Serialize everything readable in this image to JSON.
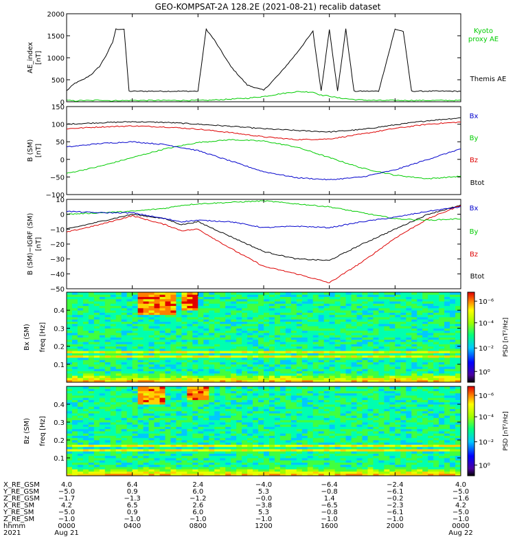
{
  "title": "GEO-KOMPSAT-2A 128.2E (2021-08-21) recalib dataset",
  "colors": {
    "black": "#000000",
    "red": "#dd0000",
    "green": "#00cc00",
    "blue": "#0000cc"
  },
  "chart_data": [
    {
      "type": "line",
      "ylabel": "AE_index",
      "yunit": "[nT]",
      "ylim": [
        0,
        2000
      ],
      "yticks": [
        "0",
        "500",
        "1000",
        "1500",
        "2000"
      ],
      "legend": [
        "Kyoto proxy AE",
        "Themis AE"
      ],
      "x_hours": [
        0,
        0.5,
        1,
        1.5,
        2,
        2.4,
        2.8,
        3,
        3.2,
        3.5,
        3.8,
        4,
        4.5,
        6,
        8,
        8.5,
        9,
        10,
        11,
        12,
        13,
        14,
        15,
        15.5,
        16,
        16.5,
        17,
        17.5,
        18,
        19,
        20,
        20.5,
        21,
        21.5,
        22,
        24
      ],
      "series": [
        {
          "name": "Themis AE",
          "color": "black",
          "values": [
            250,
            420,
            500,
            620,
            800,
            1050,
            1350,
            1650,
            1650,
            1650,
            240,
            240,
            240,
            240,
            240,
            1650,
            1400,
            800,
            380,
            260,
            650,
            1100,
            1600,
            240,
            1650,
            240,
            1650,
            240,
            240,
            240,
            1650,
            1600,
            240,
            240,
            240,
            240
          ]
        },
        {
          "name": "Kyoto proxy AE",
          "color": "green",
          "values": [
            30,
            20,
            30,
            25,
            40,
            30,
            20,
            25,
            30,
            25,
            30,
            30,
            30,
            30,
            30,
            30,
            40,
            60,
            80,
            120,
            180,
            230,
            220,
            150,
            130,
            90,
            70,
            50,
            40,
            30,
            30,
            30,
            30,
            30,
            30,
            30
          ]
        }
      ]
    },
    {
      "type": "line",
      "ylabel": "B (SM)",
      "yunit": "[nT]",
      "ylim": [
        -100,
        150
      ],
      "yticks": [
        "−100",
        "−50",
        "0",
        "50",
        "100",
        "150"
      ],
      "legend": [
        "Bx",
        "By",
        "Bz",
        "Btot"
      ],
      "x_hours": [
        0,
        2,
        4,
        6,
        8,
        10,
        12,
        14,
        16,
        18,
        20,
        22,
        24
      ],
      "series": [
        {
          "name": "Btot",
          "color": "black",
          "values": [
            100,
            104,
            107,
            105,
            100,
            94,
            87,
            82,
            78,
            85,
            98,
            110,
            118
          ]
        },
        {
          "name": "Bz",
          "color": "red",
          "values": [
            87,
            92,
            95,
            92,
            86,
            76,
            64,
            56,
            58,
            72,
            88,
            100,
            106
          ]
        },
        {
          "name": "By",
          "color": "green",
          "values": [
            -40,
            -20,
            5,
            30,
            48,
            56,
            52,
            35,
            5,
            -25,
            -45,
            -55,
            -48
          ]
        },
        {
          "name": "Bx",
          "color": "blue",
          "values": [
            35,
            45,
            50,
            42,
            25,
            -5,
            -35,
            -52,
            -58,
            -50,
            -30,
            0,
            30
          ]
        }
      ]
    },
    {
      "type": "line",
      "ylabel": "B (SM)−IGRF (SM)",
      "yunit": "[nT]",
      "ylim": [
        -50,
        10
      ],
      "yticks": [
        "−50",
        "−40",
        "−30",
        "−20",
        "−10",
        "0",
        "10"
      ],
      "legend": [
        "Bx",
        "By",
        "Bz",
        "Btot"
      ],
      "x_hours": [
        0,
        2,
        4,
        6,
        7,
        8,
        10,
        12,
        14,
        16,
        18,
        20,
        22,
        24
      ],
      "series": [
        {
          "name": "Btot",
          "color": "black",
          "values": [
            -10,
            -5,
            0,
            -3,
            -7,
            -5,
            -15,
            -25,
            -30,
            -31,
            -20,
            -10,
            0,
            6
          ]
        },
        {
          "name": "Bz",
          "color": "red",
          "values": [
            -12,
            -7,
            -1,
            -7,
            -11,
            -10,
            -23,
            -35,
            -40,
            -46,
            -32,
            -16,
            -3,
            6
          ]
        },
        {
          "name": "By",
          "color": "green",
          "values": [
            0,
            1,
            2,
            4,
            6,
            7,
            8,
            9,
            7,
            5,
            1,
            -3,
            -4,
            -3
          ]
        },
        {
          "name": "Bx",
          "color": "blue",
          "values": [
            2,
            1,
            1,
            -3,
            -5,
            -4,
            -5,
            -9,
            -8,
            -9,
            -5,
            -2,
            2,
            5
          ]
        }
      ]
    },
    {
      "type": "heatmap",
      "ylabel": "Bx (SM)",
      "y_axis_label": "freq",
      "yunit": "[Hz]",
      "ylim": [
        0,
        0.5
      ],
      "yticks": [
        "0.1",
        "0.2",
        "0.3",
        "0.4"
      ],
      "colorbar_label": "PSD [nT²/Hz]",
      "colorbar_ticks": [
        "10⁻⁶",
        "10⁻⁴",
        "10⁻²",
        "10⁰"
      ],
      "harmonic_lines_hz": [
        0.14,
        0.17
      ],
      "bursts": [
        {
          "t": [
            4.5,
            6.5
          ],
          "f": [
            0.38,
            0.5
          ]
        },
        {
          "t": [
            7,
            8
          ],
          "f": [
            0.4,
            0.5
          ]
        }
      ]
    },
    {
      "type": "heatmap",
      "ylabel": "Bz (SM)",
      "y_axis_label": "freq",
      "yunit": "[Hz]",
      "ylim": [
        0,
        0.5
      ],
      "yticks": [
        "0.1",
        "0.2",
        "0.3",
        "0.4"
      ],
      "colorbar_label": "PSD [nT²/Hz]",
      "colorbar_ticks": [
        "10⁻⁶",
        "10⁻⁴",
        "10⁻²",
        "10⁰"
      ],
      "harmonic_lines_hz": [
        0.14,
        0.17
      ],
      "bursts": [
        {
          "t": [
            4.5,
            6
          ],
          "f": [
            0.4,
            0.5
          ]
        },
        {
          "t": [
            7.5,
            8.5
          ],
          "f": [
            0.42,
            0.5
          ]
        }
      ]
    }
  ],
  "x_axis": {
    "xlim_hours": [
      0,
      24
    ],
    "tick_hours": [
      0,
      4,
      8,
      12,
      16,
      20,
      24
    ],
    "rows": [
      {
        "label": "X_RE_GSM",
        "values": [
          "4.0",
          "6.4",
          "2.4",
          "−4.0",
          "−6.4",
          "−2.4",
          "4.0"
        ]
      },
      {
        "label": "Y_RE_GSM",
        "values": [
          "−5.0",
          "0.9",
          "6.0",
          "5.3",
          "−0.8",
          "−6.1",
          "−5.0"
        ]
      },
      {
        "label": "Z_RE_GSM",
        "values": [
          "−1.7",
          "−1.3",
          "−1.2",
          "−0.0",
          "1.4",
          "−0.2",
          "−1.6"
        ]
      },
      {
        "label": "X_RE_SM",
        "values": [
          "4.2",
          "6.5",
          "2.6",
          "−3.8",
          "−6.5",
          "−2.3",
          "4.2"
        ]
      },
      {
        "label": "Y_RE_SM",
        "values": [
          "−5.0",
          "0.9",
          "6.0",
          "5.3",
          "−0.8",
          "−6.1",
          "−5.0"
        ]
      },
      {
        "label": "Z_RE_SM",
        "values": [
          "−1.0",
          "−1.0",
          "−1.0",
          "−1.0",
          "−1.0",
          "−1.0",
          "−1.0"
        ]
      },
      {
        "label": "hhmm",
        "values": [
          "0000",
          "0400",
          "0800",
          "1200",
          "1600",
          "2000",
          "0000"
        ]
      },
      {
        "label": "2021",
        "values": [
          "Aug 21",
          "",
          "",
          "",
          "",
          "",
          "Aug 22"
        ]
      }
    ]
  }
}
